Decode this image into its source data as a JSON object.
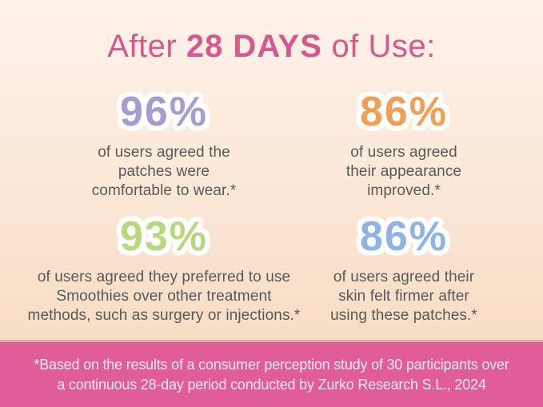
{
  "title": {
    "prefix": "After ",
    "highlight": "28 DAYS",
    "suffix": " of Use:"
  },
  "stats": [
    {
      "value": "96%",
      "color": "#a89bce",
      "color_name": "purple",
      "lines": [
        "of users agreed the",
        "patches were",
        "comfortable to wear.*"
      ]
    },
    {
      "value": "86%",
      "color": "#f0a055",
      "color_name": "orange",
      "lines": [
        "of users agreed",
        "their appearance",
        "improved.*"
      ]
    },
    {
      "value": "93%",
      "color": "#b8d87f",
      "color_name": "green",
      "lines": [
        "of users agreed they preferred to use",
        "Smoothies over other treatment",
        "methods, such as surgery or injections.*"
      ]
    },
    {
      "value": "86%",
      "color": "#8db4e2",
      "color_name": "blue",
      "lines": [
        "of users agreed their",
        "skin felt firmer after",
        "using these patches.*"
      ]
    }
  ],
  "footer": {
    "lines": [
      "*Based on the results of a consumer perception study of 30 participants over",
      "a continuous 28-day period conducted by Zurko Research S.L., 2024"
    ]
  },
  "colors": {
    "background_top": "#fdf2e9",
    "background_bottom": "#f5d8bb",
    "title_pink": "#d6588f",
    "body_text": "#58595b",
    "footer_background": "#e05d97",
    "footer_text": "#fbe8f1"
  },
  "chart_data": {
    "type": "table",
    "title": "After 28 DAYS of Use:",
    "categories": [
      "agreed the patches were comfortable to wear",
      "agreed their appearance improved",
      "agreed they preferred to use Smoothies over other treatment methods, such as surgery or injections",
      "agreed their skin felt firmer after using these patches"
    ],
    "values": [
      96,
      86,
      93,
      86
    ],
    "unit": "%",
    "source_note": "*Based on the results of a consumer perception study of 30 participants over a continuous 28-day period conducted by Zurko Research S.L., 2024"
  }
}
